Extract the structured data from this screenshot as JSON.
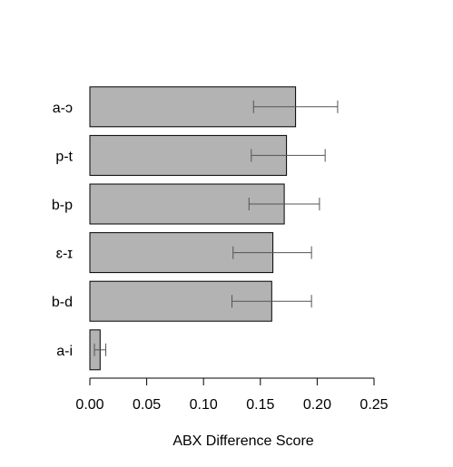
{
  "chart_data": {
    "type": "bar",
    "orientation": "horizontal",
    "categories": [
      "a-ɔ",
      "p-t",
      "b-p",
      "ɛ-ɪ",
      "b-d",
      "a-i"
    ],
    "values": [
      0.181,
      0.173,
      0.171,
      0.161,
      0.16,
      0.009
    ],
    "error_low": [
      0.144,
      0.142,
      0.14,
      0.126,
      0.125,
      0.004
    ],
    "error_high": [
      0.218,
      0.207,
      0.202,
      0.195,
      0.195,
      0.014
    ],
    "xlabel": "ABX Difference Score",
    "ylabel": "",
    "title": "",
    "xlim": [
      0,
      0.25
    ],
    "x_ticks": [
      0,
      0.05,
      0.1,
      0.15,
      0.2,
      0.25
    ],
    "x_tick_labels": [
      "0.00",
      "0.05",
      "0.10",
      "0.15",
      "0.20",
      "0.25"
    ],
    "grid": false,
    "bar_color": "#b3b3b3",
    "error_bar_color": "#555555"
  }
}
